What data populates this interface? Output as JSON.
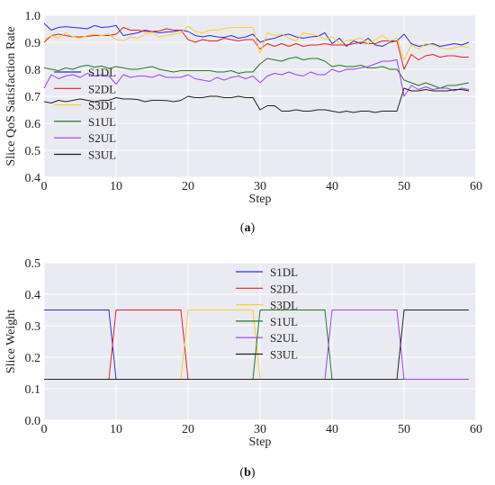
{
  "figure": {
    "caption_a_open": "(",
    "caption_a_letter": "a",
    "caption_a_close": ")",
    "caption_b_open": "(",
    "caption_b_letter": "b",
    "caption_b_close": ")"
  },
  "colors": {
    "S1DL": "#2b2bdc",
    "S2DL": "#e02020",
    "S3DL": "#f6cf2a",
    "S1UL": "#1f7a1f",
    "S2UL": "#9b40e8",
    "S3UL": "#222222",
    "plot_bg": "#eaeaf2",
    "grid": "#ffffff"
  },
  "chart_data": [
    {
      "type": "line",
      "xlabel": "Step",
      "ylabel": "Slice QoS Satisfaction Rate",
      "xlim": [
        0,
        60
      ],
      "ylim": [
        0.4,
        1.0
      ],
      "xticks": [
        0,
        10,
        20,
        30,
        40,
        50,
        60
      ],
      "yticks": [
        0.4,
        0.5,
        0.6,
        0.7,
        0.8,
        0.9,
        1.0
      ],
      "grid": true,
      "legend_position": "center-left",
      "x": [
        0,
        1,
        2,
        3,
        4,
        5,
        6,
        7,
        8,
        9,
        10,
        11,
        12,
        13,
        14,
        15,
        16,
        17,
        18,
        19,
        20,
        21,
        22,
        23,
        24,
        25,
        26,
        27,
        28,
        29,
        30,
        31,
        32,
        33,
        34,
        35,
        36,
        37,
        38,
        39,
        40,
        41,
        42,
        43,
        44,
        45,
        46,
        47,
        48,
        49,
        50,
        51,
        52,
        53,
        54,
        55,
        56,
        57,
        58,
        59
      ],
      "series": [
        {
          "name": "S1DL",
          "values": [
            0.97,
            0.945,
            0.955,
            0.958,
            0.955,
            0.953,
            0.95,
            0.962,
            0.955,
            0.957,
            0.962,
            0.925,
            0.93,
            0.935,
            0.945,
            0.94,
            0.935,
            0.938,
            0.94,
            0.945,
            0.94,
            0.925,
            0.92,
            0.925,
            0.92,
            0.918,
            0.925,
            0.915,
            0.92,
            0.93,
            0.9,
            0.91,
            0.915,
            0.925,
            0.93,
            0.92,
            0.915,
            0.92,
            0.922,
            0.935,
            0.895,
            0.915,
            0.885,
            0.905,
            0.895,
            0.915,
            0.89,
            0.885,
            0.9,
            0.905,
            0.93,
            0.895,
            0.885,
            0.89,
            0.895,
            0.885,
            0.89,
            0.895,
            0.89,
            0.9
          ]
        },
        {
          "name": "S2DL",
          "values": [
            0.9,
            0.925,
            0.93,
            0.925,
            0.92,
            0.92,
            0.922,
            0.925,
            0.925,
            0.925,
            0.93,
            0.955,
            0.945,
            0.945,
            0.94,
            0.94,
            0.942,
            0.95,
            0.945,
            0.945,
            0.91,
            0.9,
            0.91,
            0.905,
            0.905,
            0.915,
            0.91,
            0.905,
            0.91,
            0.91,
            0.875,
            0.895,
            0.885,
            0.895,
            0.885,
            0.895,
            0.885,
            0.89,
            0.89,
            0.895,
            0.89,
            0.89,
            0.89,
            0.895,
            0.9,
            0.895,
            0.895,
            0.905,
            0.905,
            0.905,
            0.8,
            0.855,
            0.835,
            0.85,
            0.855,
            0.845,
            0.85,
            0.85,
            0.845,
            0.845
          ]
        },
        {
          "name": "S3DL",
          "values": [
            0.91,
            0.925,
            0.915,
            0.935,
            0.92,
            0.915,
            0.925,
            0.93,
            0.925,
            0.93,
            0.91,
            0.905,
            0.92,
            0.915,
            0.93,
            0.935,
            0.92,
            0.925,
            0.93,
            0.935,
            0.96,
            0.94,
            0.935,
            0.945,
            0.945,
            0.95,
            0.955,
            0.955,
            0.955,
            0.955,
            0.86,
            0.935,
            0.925,
            0.93,
            0.915,
            0.905,
            0.935,
            0.93,
            0.925,
            0.91,
            0.92,
            0.895,
            0.905,
            0.91,
            0.915,
            0.895,
            0.91,
            0.925,
            0.905,
            0.915,
            0.835,
            0.89,
            0.875,
            0.895,
            0.89,
            0.88,
            0.875,
            0.88,
            0.885,
            0.88
          ]
        },
        {
          "name": "S1UL",
          "values": [
            0.805,
            0.8,
            0.795,
            0.805,
            0.8,
            0.81,
            0.815,
            0.808,
            0.812,
            0.803,
            0.81,
            0.805,
            0.8,
            0.8,
            0.805,
            0.81,
            0.8,
            0.795,
            0.79,
            0.795,
            0.795,
            0.795,
            0.795,
            0.795,
            0.79,
            0.79,
            0.795,
            0.785,
            0.79,
            0.79,
            0.82,
            0.84,
            0.835,
            0.83,
            0.84,
            0.845,
            0.835,
            0.84,
            0.84,
            0.83,
            0.81,
            0.815,
            0.81,
            0.81,
            0.815,
            0.805,
            0.805,
            0.81,
            0.8,
            0.8,
            0.76,
            0.75,
            0.74,
            0.75,
            0.74,
            0.73,
            0.74,
            0.74,
            0.745,
            0.75
          ]
        },
        {
          "name": "S2UL",
          "values": [
            0.73,
            0.78,
            0.765,
            0.775,
            0.78,
            0.77,
            0.785,
            0.775,
            0.78,
            0.775,
            0.745,
            0.78,
            0.77,
            0.775,
            0.775,
            0.77,
            0.78,
            0.77,
            0.77,
            0.77,
            0.78,
            0.765,
            0.76,
            0.755,
            0.77,
            0.76,
            0.77,
            0.775,
            0.765,
            0.775,
            0.75,
            0.775,
            0.785,
            0.78,
            0.79,
            0.78,
            0.775,
            0.79,
            0.78,
            0.78,
            0.8,
            0.79,
            0.8,
            0.8,
            0.805,
            0.81,
            0.82,
            0.83,
            0.83,
            0.835,
            0.7,
            0.74,
            0.725,
            0.735,
            0.725,
            0.73,
            0.73,
            0.72,
            0.73,
            0.725
          ]
        },
        {
          "name": "S3UL",
          "values": [
            0.68,
            0.675,
            0.685,
            0.68,
            0.685,
            0.69,
            0.685,
            0.68,
            0.685,
            0.685,
            0.695,
            0.69,
            0.69,
            0.688,
            0.68,
            0.685,
            0.685,
            0.684,
            0.68,
            0.685,
            0.7,
            0.695,
            0.695,
            0.7,
            0.7,
            0.695,
            0.695,
            0.7,
            0.695,
            0.695,
            0.65,
            0.665,
            0.665,
            0.645,
            0.645,
            0.65,
            0.645,
            0.645,
            0.65,
            0.65,
            0.645,
            0.64,
            0.645,
            0.64,
            0.645,
            0.645,
            0.64,
            0.645,
            0.645,
            0.645,
            0.73,
            0.72,
            0.72,
            0.725,
            0.72,
            0.72,
            0.72,
            0.725,
            0.725,
            0.72
          ]
        }
      ]
    },
    {
      "type": "line",
      "xlabel": "Step",
      "ylabel": "Slice Weight",
      "xlim": [
        0,
        60
      ],
      "ylim": [
        0.0,
        0.5
      ],
      "xticks": [
        0,
        10,
        20,
        30,
        40,
        50,
        60
      ],
      "yticks": [
        0.0,
        0.1,
        0.2,
        0.3,
        0.4,
        0.5
      ],
      "grid": true,
      "legend_position": "upper-center",
      "series": [
        {
          "name": "S1DL",
          "x": [
            0,
            9,
            10,
            59
          ],
          "values": [
            0.35,
            0.35,
            0.13,
            0.13
          ]
        },
        {
          "name": "S2DL",
          "x": [
            0,
            9,
            10,
            19,
            20,
            59
          ],
          "values": [
            0.13,
            0.13,
            0.35,
            0.35,
            0.13,
            0.13
          ]
        },
        {
          "name": "S3DL",
          "x": [
            0,
            19,
            20,
            29,
            30,
            59
          ],
          "values": [
            0.13,
            0.13,
            0.35,
            0.35,
            0.13,
            0.13
          ]
        },
        {
          "name": "S1UL",
          "x": [
            0,
            29,
            30,
            39,
            40,
            59
          ],
          "values": [
            0.13,
            0.13,
            0.35,
            0.35,
            0.13,
            0.13
          ]
        },
        {
          "name": "S2UL",
          "x": [
            0,
            39,
            40,
            49,
            50,
            59
          ],
          "values": [
            0.13,
            0.13,
            0.35,
            0.35,
            0.13,
            0.13
          ]
        },
        {
          "name": "S3UL",
          "x": [
            0,
            49,
            50,
            59
          ],
          "values": [
            0.13,
            0.13,
            0.35,
            0.35
          ]
        }
      ]
    }
  ]
}
